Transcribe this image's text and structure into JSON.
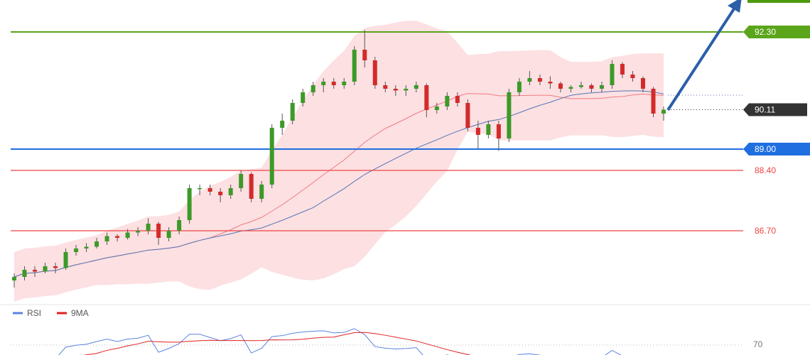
{
  "chart_data": {
    "type": "candlestick",
    "ohlc": [
      [
        85.3,
        85.5,
        85.1,
        85.4
      ],
      [
        85.4,
        85.7,
        85.3,
        85.6
      ],
      [
        85.6,
        85.7,
        85.4,
        85.55
      ],
      [
        85.55,
        85.8,
        85.5,
        85.7
      ],
      [
        85.7,
        85.8,
        85.5,
        85.65
      ],
      [
        85.65,
        86.2,
        85.6,
        86.1
      ],
      [
        86.1,
        86.3,
        86.0,
        86.2
      ],
      [
        86.2,
        86.35,
        86.1,
        86.25
      ],
      [
        86.25,
        86.5,
        86.2,
        86.4
      ],
      [
        86.4,
        86.65,
        86.3,
        86.55
      ],
      [
        86.55,
        86.6,
        86.4,
        86.5
      ],
      [
        86.5,
        86.75,
        86.45,
        86.65
      ],
      [
        86.65,
        86.8,
        86.55,
        86.7
      ],
      [
        86.7,
        87.05,
        86.6,
        86.9
      ],
      [
        86.9,
        86.95,
        86.3,
        86.5
      ],
      [
        86.5,
        86.8,
        86.4,
        86.7
      ],
      [
        86.7,
        87.1,
        86.6,
        87.0
      ],
      [
        87.0,
        88.0,
        86.9,
        87.9
      ],
      [
        87.9,
        88.0,
        87.7,
        87.9
      ],
      [
        87.9,
        88.0,
        87.7,
        87.8
      ],
      [
        87.8,
        87.9,
        87.5,
        87.7
      ],
      [
        87.7,
        88.0,
        87.6,
        87.9
      ],
      [
        87.9,
        88.4,
        87.8,
        88.3
      ],
      [
        88.3,
        88.35,
        87.5,
        87.6
      ],
      [
        87.6,
        88.1,
        87.5,
        88.0
      ],
      [
        88.0,
        89.7,
        87.9,
        89.6
      ],
      [
        89.6,
        90.0,
        89.4,
        89.8
      ],
      [
        89.8,
        90.4,
        89.7,
        90.3
      ],
      [
        90.3,
        90.7,
        90.2,
        90.6
      ],
      [
        90.6,
        90.9,
        90.5,
        90.8
      ],
      [
        90.8,
        91.0,
        90.6,
        90.9
      ],
      [
        90.9,
        91.0,
        90.7,
        90.8
      ],
      [
        90.8,
        91.0,
        90.7,
        90.9
      ],
      [
        90.9,
        91.9,
        90.8,
        91.8
      ],
      [
        91.8,
        92.35,
        91.3,
        91.5
      ],
      [
        91.5,
        91.6,
        90.7,
        90.8
      ],
      [
        90.8,
        90.9,
        90.6,
        90.7
      ],
      [
        90.7,
        90.8,
        90.5,
        90.65
      ],
      [
        90.65,
        90.8,
        90.5,
        90.7
      ],
      [
        90.7,
        90.9,
        90.6,
        90.8
      ],
      [
        90.8,
        90.85,
        89.9,
        90.1
      ],
      [
        90.1,
        90.3,
        90.0,
        90.2
      ],
      [
        90.2,
        90.6,
        90.1,
        90.5
      ],
      [
        90.5,
        90.6,
        90.2,
        90.3
      ],
      [
        90.3,
        90.4,
        89.5,
        89.6
      ],
      [
        89.6,
        89.8,
        89.0,
        89.4
      ],
      [
        89.4,
        89.8,
        89.3,
        89.7
      ],
      [
        89.7,
        89.8,
        88.95,
        89.3
      ],
      [
        89.3,
        90.7,
        89.2,
        90.6
      ],
      [
        90.6,
        91.0,
        90.5,
        90.9
      ],
      [
        90.9,
        91.2,
        90.8,
        91.0
      ],
      [
        91.0,
        91.1,
        90.8,
        90.9
      ],
      [
        90.9,
        91.05,
        90.7,
        90.85
      ],
      [
        90.85,
        90.9,
        90.6,
        90.7
      ],
      [
        90.7,
        90.8,
        90.6,
        90.75
      ],
      [
        90.75,
        90.9,
        90.7,
        90.8
      ],
      [
        90.8,
        90.85,
        90.6,
        90.7
      ],
      [
        90.7,
        90.9,
        90.6,
        90.8
      ],
      [
        90.8,
        91.5,
        90.7,
        91.4
      ],
      [
        91.4,
        91.45,
        91.0,
        91.1
      ],
      [
        91.1,
        91.2,
        90.9,
        91.0
      ],
      [
        91.0,
        91.05,
        90.6,
        90.7
      ],
      [
        90.7,
        90.75,
        89.9,
        90.0
      ],
      [
        90.0,
        90.2,
        89.8,
        90.11
      ]
    ],
    "up_color": "#3c9a28",
    "down_color": "#d42a2a",
    "ylim": [
      84.7,
      93.2
    ],
    "levels": [
      {
        "value": 92.3,
        "label": "92.30",
        "color": "#5aa51a"
      },
      {
        "value": 89.0,
        "label": "89.00",
        "color": "#1f6fe0"
      },
      {
        "value": 88.4,
        "label": "88.40",
        "color": "#ee4444"
      },
      {
        "value": 86.7,
        "label": "86.70",
        "color": "#ee4444"
      }
    ],
    "last_price": {
      "value": 90.11,
      "label": "90.11",
      "color": "#333333"
    },
    "reference_line": 90.52,
    "rsi_panel": {
      "series": [
        {
          "name": "RSI",
          "color": "#5b82e0"
        },
        {
          "name": "9MA",
          "color": "#e02020"
        }
      ],
      "ylim": [
        40,
        100
      ],
      "yticks": [
        70
      ]
    }
  }
}
